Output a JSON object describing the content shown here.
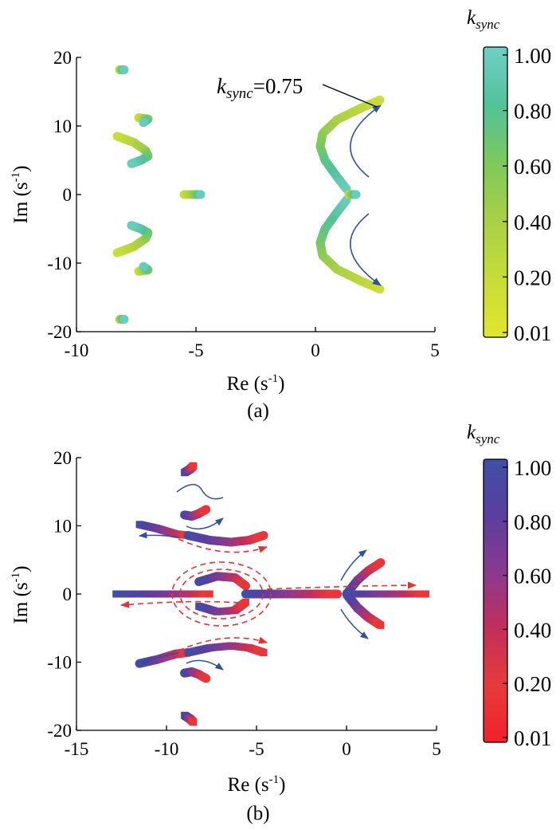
{
  "panels": [
    {
      "label": "(a)",
      "xlabel": "Re (s",
      "xlabel_sup": "-1",
      "xlabel_end": ")",
      "ylabel": "Im (s",
      "ylabel_sup": "-1",
      "ylabel_end": ")",
      "annotation": {
        "k": "k",
        "sub": "sync",
        "rest": "=0.75"
      },
      "colorbar": {
        "title": "k",
        "title_sub": "sync",
        "ticks": [
          "1.00",
          "0.80",
          "0.60",
          "0.40",
          "0.20",
          "0.01"
        ],
        "colors": [
          "#6fcfc6",
          "#52c29a",
          "#7dc95a",
          "#a9d046",
          "#c7dc38",
          "#e2e62a"
        ]
      }
    },
    {
      "label": "(b)",
      "xlabel": "Re (s",
      "xlabel_sup": "-1",
      "xlabel_end": ")",
      "ylabel": "Im (s",
      "ylabel_sup": "-1",
      "ylabel_end": ")",
      "colorbar": {
        "title": "k",
        "title_sub": "sync",
        "ticks": [
          "1.00",
          "0.80",
          "0.60",
          "0.40",
          "0.20",
          "0.01"
        ],
        "colors": [
          "#3f4fa6",
          "#5b3e9e",
          "#8a3a8f",
          "#c22f5a",
          "#e63b3b",
          "#f0222a"
        ]
      }
    }
  ],
  "chart_data": [
    {
      "type": "scatter",
      "title": "",
      "xlabel": "Re (s-1)",
      "ylabel": "Im (s-1)",
      "xlim": [
        -10,
        5
      ],
      "ylim": [
        -20,
        20
      ],
      "xticks": [
        -10,
        -5,
        0,
        5
      ],
      "yticks": [
        20,
        10,
        0,
        -10,
        -20
      ],
      "colorbar_label": "k_sync",
      "colorbar_range": [
        0.01,
        1.0
      ],
      "series": [
        {
          "x": [
            -8.2,
            -8.0
          ],
          "y": [
            18.2,
            18.2
          ]
        },
        {
          "x": [
            -7.4,
            -7.0,
            -7.2
          ],
          "y": [
            11.2,
            11.0,
            10.5
          ]
        },
        {
          "x": [
            -8.3,
            -7.6,
            -7.1,
            -7.0,
            -7.3,
            -7.7
          ],
          "y": [
            8.5,
            7.6,
            6.4,
            5.6,
            5.0,
            4.5
          ]
        },
        {
          "x": [
            -5.5,
            -5.0,
            -4.8
          ],
          "y": [
            0,
            0,
            0
          ]
        },
        {
          "x": [
            -8.3,
            -7.6,
            -7.1,
            -7.0,
            -7.3,
            -7.7
          ],
          "y": [
            -8.5,
            -7.6,
            -6.4,
            -5.6,
            -5.0,
            -4.5
          ]
        },
        {
          "x": [
            -7.4,
            -7.0,
            -7.2
          ],
          "y": [
            -11.2,
            -11.0,
            -10.5
          ]
        },
        {
          "x": [
            -8.2,
            -8.0
          ],
          "y": [
            -18.2,
            -18.2
          ]
        },
        {
          "x": [
            2.7,
            1.9,
            0.9,
            0.3,
            0.2,
            0.4,
            0.9,
            1.3
          ],
          "y": [
            13.8,
            12.6,
            10.9,
            8.9,
            7.0,
            5.0,
            2.6,
            0.8
          ]
        },
        {
          "x": [
            2.7,
            1.9,
            0.9,
            0.3,
            0.2,
            0.4,
            0.9,
            1.3
          ],
          "y": [
            -13.8,
            -12.6,
            -10.9,
            -8.9,
            -7.0,
            -5.0,
            -2.6,
            -0.8
          ]
        },
        {
          "x": [
            1.4,
            1.7
          ],
          "y": [
            0,
            0
          ]
        }
      ]
    },
    {
      "type": "scatter",
      "title": "",
      "xlabel": "Re (s-1)",
      "ylabel": "Im (s-1)",
      "xlim": [
        -15,
        5
      ],
      "ylim": [
        -20,
        20
      ],
      "xticks": [
        -15,
        -10,
        -5,
        0,
        5
      ],
      "yticks": [
        20,
        10,
        0,
        -10,
        -20
      ],
      "colorbar_label": "k_sync",
      "colorbar_range": [
        0.01,
        1.0
      ],
      "series": [
        {
          "x": [
            -9.0,
            -8.7,
            -8.5
          ],
          "y": [
            17.8,
            18.3,
            18.8
          ]
        },
        {
          "x": [
            -9.0,
            -8.6,
            -8.2,
            -7.8
          ],
          "y": [
            11.6,
            11.4,
            11.8,
            12.4
          ]
        },
        {
          "x": [
            -11.5,
            -10.5,
            -9.5,
            -8.8
          ],
          "y": [
            10.2,
            9.6,
            8.8,
            8.6
          ]
        },
        {
          "x": [
            -8.8,
            -7.6,
            -6.4,
            -5.4,
            -4.6
          ],
          "y": [
            8.6,
            7.9,
            7.6,
            7.9,
            8.6
          ]
        },
        {
          "x": [
            -12.8,
            -11.2,
            -9.8,
            -8.9,
            -8.2,
            -7.6
          ],
          "y": [
            0,
            0,
            0,
            0,
            0,
            0
          ]
        },
        {
          "x": [
            -8.2,
            -7.2,
            -6.2,
            -5.6
          ],
          "y": [
            1.8,
            2.6,
            2.4,
            1.2
          ]
        },
        {
          "x": [
            -8.2,
            -7.2,
            -6.2,
            -5.6
          ],
          "y": [
            -1.8,
            -2.6,
            -2.4,
            -1.2
          ]
        },
        {
          "x": [
            -5.6,
            -4.0,
            -2.0,
            -0.5
          ],
          "y": [
            0,
            0,
            0,
            0
          ]
        },
        {
          "x": [
            0,
            1.2,
            2.4,
            3.6,
            4.4
          ],
          "y": [
            0,
            0,
            0,
            0,
            0
          ]
        },
        {
          "x": [
            0,
            0.6,
            1.2,
            1.9
          ],
          "y": [
            0,
            2.0,
            3.4,
            4.6
          ]
        },
        {
          "x": [
            0,
            0.6,
            1.2,
            1.9
          ],
          "y": [
            0,
            -2.0,
            -3.4,
            -4.6
          ]
        },
        {
          "x": [
            -11.5,
            -10.5,
            -9.5,
            -8.8
          ],
          "y": [
            -10.2,
            -9.6,
            -8.8,
            -8.6
          ]
        },
        {
          "x": [
            -8.8,
            -7.6,
            -6.4,
            -5.4,
            -4.6
          ],
          "y": [
            -8.6,
            -7.9,
            -7.6,
            -7.9,
            -8.6
          ]
        },
        {
          "x": [
            -9.0,
            -8.6,
            -8.2,
            -7.8
          ],
          "y": [
            -11.6,
            -11.4,
            -11.8,
            -12.4
          ]
        },
        {
          "x": [
            -9.0,
            -8.7,
            -8.5
          ],
          "y": [
            -17.8,
            -18.3,
            -18.8
          ]
        }
      ]
    }
  ]
}
